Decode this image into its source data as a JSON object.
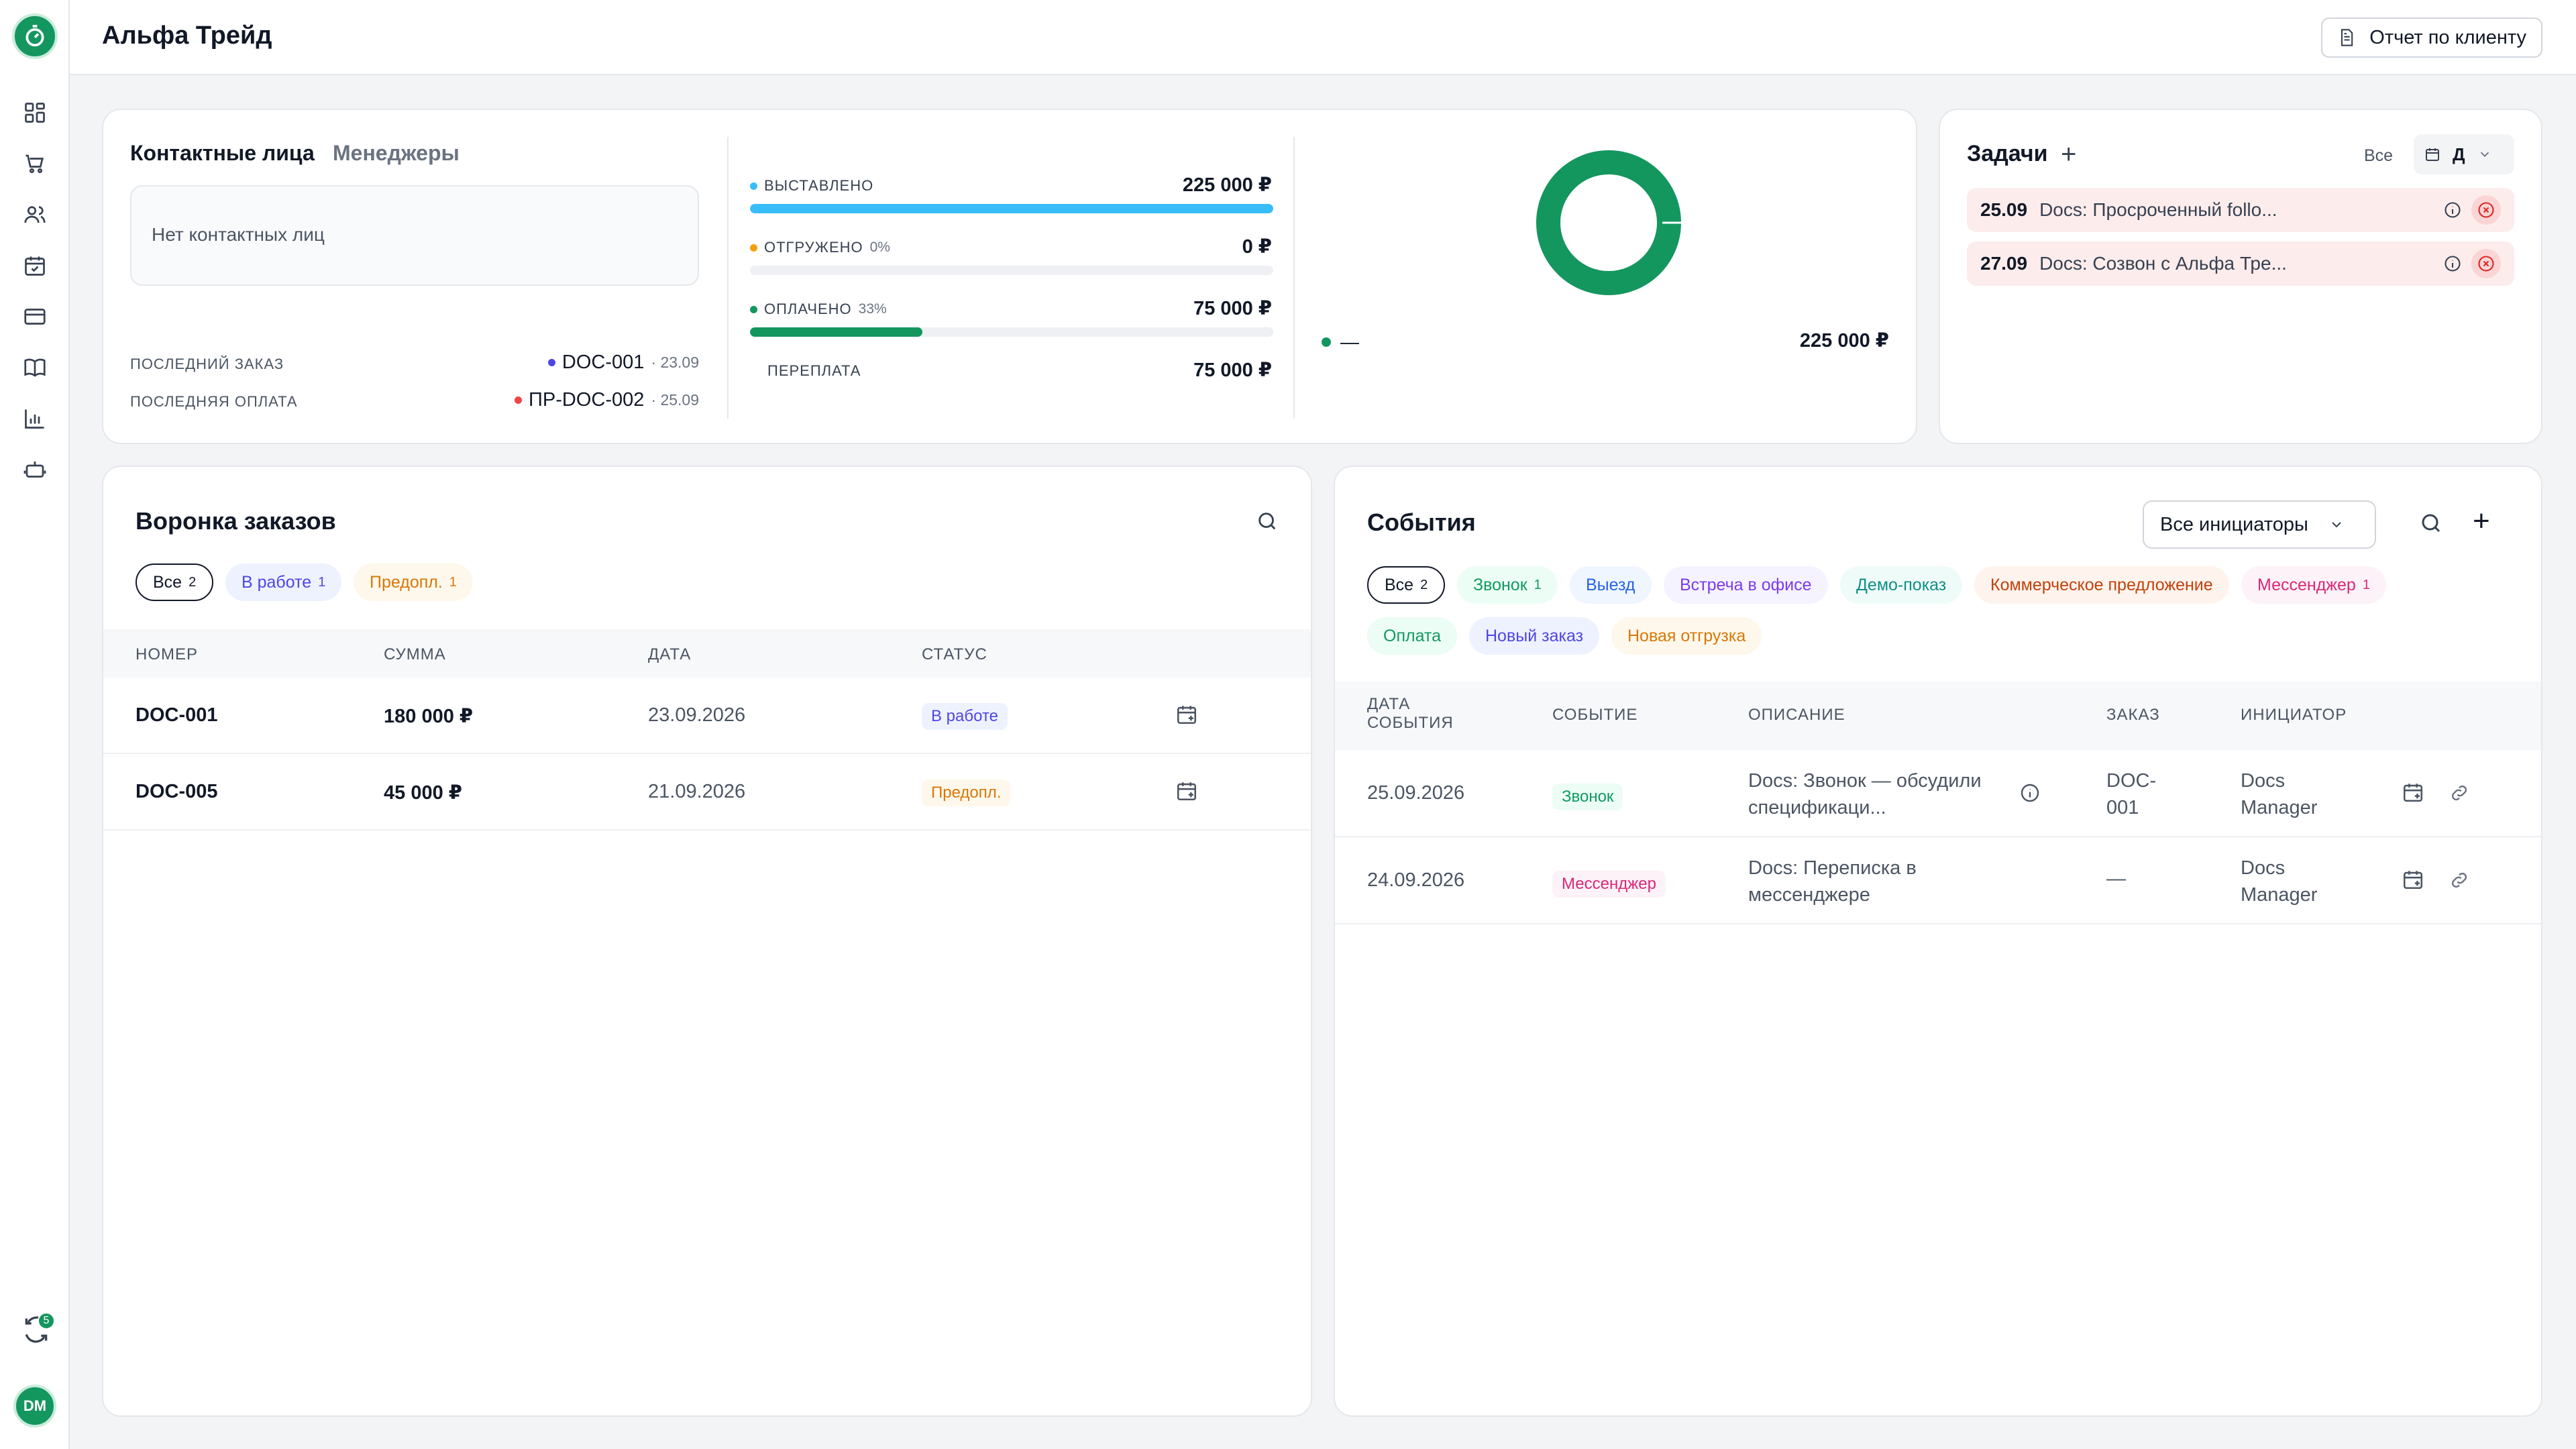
{
  "header": {
    "title": "Альфа Трейд",
    "report_label": "Отчет по клиенту"
  },
  "sidebar": {
    "icons": [
      "dashboard-icon",
      "cart-icon",
      "users-icon",
      "calendar-icon",
      "card-icon",
      "book-icon",
      "chart-icon",
      "bot-icon"
    ],
    "sync_badge": "5",
    "avatar": "DM"
  },
  "contacts": {
    "tab_contacts": "Контактные лица",
    "tab_managers": "Менеджеры",
    "empty": "Нет контактных лиц",
    "last_order_label": "ПОСЛЕДНИЙ ЗАКАЗ",
    "last_order_value": "DOC-001",
    "last_order_date": "· 23.09",
    "last_payment_label": "ПОСЛЕДНЯЯ ОПЛАТА",
    "last_payment_value": "ПР-DOC-002",
    "last_payment_date": "· 25.09",
    "order_dot_color": "#4f46e5",
    "payment_dot_color": "#ef4444"
  },
  "metrics": {
    "invoiced": {
      "label": "ВЫСТАВЛЕНО",
      "pct": "",
      "value": "225 000 ₽",
      "fill": 1.0,
      "color": "#38bdf8"
    },
    "shipped": {
      "label": "ОТГРУЖЕНО",
      "pct": "0%",
      "value": "0 ₽",
      "fill": 0.0,
      "color": "#f59e0b"
    },
    "paid": {
      "label": "ОПЛАЧЕНО",
      "pct": "33%",
      "value": "75 000 ₽",
      "fill": 0.33,
      "color": "#14965f"
    },
    "overpay": {
      "label": "ПЕРЕПЛАТА",
      "value": "75 000 ₽"
    }
  },
  "donut": {
    "legend_label": "—",
    "total": "225 000 ₽",
    "color": "#14965f"
  },
  "tasks": {
    "title": "Задачи",
    "filter_all": "Все",
    "period": "Д",
    "items": [
      {
        "date": "25.09",
        "text": "Docs: Просроченный follo..."
      },
      {
        "date": "27.09",
        "text": "Docs: Созвон с Альфа Тре..."
      }
    ]
  },
  "funnel": {
    "title": "Воронка заказов",
    "chips": [
      {
        "label": "Все",
        "count": "2",
        "color": "#111827",
        "bg": "#ffffff"
      },
      {
        "label": "В работе",
        "count": "1",
        "color": "#4f46e5",
        "bg": "#eef2ff"
      },
      {
        "label": "Предопл.",
        "count": "1",
        "color": "#d97706",
        "bg": "#fef8ec"
      }
    ],
    "headers": {
      "number": "НОМЕР",
      "sum": "СУММА",
      "date": "ДАТА",
      "status": "СТАТУС"
    },
    "rows": [
      {
        "number": "DOC-001",
        "sum": "180 000 ₽",
        "date": "23.09.2026",
        "status": "В работе",
        "status_color": "#4f46e5",
        "status_bg": "#eef2ff"
      },
      {
        "number": "DOC-005",
        "sum": "45 000 ₽",
        "date": "21.09.2026",
        "status": "Предопл.",
        "status_color": "#d97706",
        "status_bg": "#fef8ec"
      }
    ]
  },
  "events": {
    "title": "События",
    "initiator_select": "Все инициаторы",
    "chips_row1": [
      {
        "label": "Все",
        "count": "2",
        "color": "#111827",
        "bg": "#ffffff"
      },
      {
        "label": "Звонок",
        "count": "1",
        "color": "#0f9a62",
        "bg": "#ecfdf5"
      },
      {
        "label": "Выезд",
        "count": "",
        "color": "#2563eb",
        "bg": "#eff6ff"
      },
      {
        "label": "Встреча в офисе",
        "count": "",
        "color": "#7c3aed",
        "bg": "#f5f3ff"
      },
      {
        "label": "Демо-показ",
        "count": "",
        "color": "#0e8f86",
        "bg": "#effbf9"
      },
      {
        "label": "Коммерческое предложение",
        "count": "",
        "color": "#c2410c",
        "bg": "#fff4ed"
      },
      {
        "label": "Мессенджер",
        "count": "1",
        "color": "#db2777",
        "bg": "#fdf2f8"
      }
    ],
    "chips_row2": [
      {
        "label": "Оплата",
        "count": "",
        "color": "#0f9a62",
        "bg": "#ecfdf5"
      },
      {
        "label": "Новый заказ",
        "count": "",
        "color": "#4f46e5",
        "bg": "#eef2ff"
      },
      {
        "label": "Новая отгрузка",
        "count": "",
        "color": "#d97706",
        "bg": "#fef8ec"
      }
    ],
    "headers": {
      "date_line1": "ДАТА",
      "date_line2": "СОБЫТИЯ",
      "event": "СОБЫТИЕ",
      "description": "ОПИСАНИЕ",
      "order": "ЗАКАЗ",
      "initiator": "ИНИЦИАТОР"
    },
    "rows": [
      {
        "date": "25.09.2026",
        "event": "Звонок",
        "event_color": "#0f9a62",
        "event_bg": "#ecfdf5",
        "desc1": "Docs: Звонок — обсудили",
        "desc2": "спецификаци...",
        "order1": "DOC-",
        "order2": "001",
        "init1": "Docs",
        "init2": "Manager"
      },
      {
        "date": "24.09.2026",
        "event": "Мессенджер",
        "event_color": "#db2777",
        "event_bg": "#fdf2f8",
        "desc1": "Docs: Переписка в",
        "desc2": "мессенджере",
        "order1": "—",
        "order2": "",
        "init1": "Docs",
        "init2": "Manager"
      }
    ]
  }
}
